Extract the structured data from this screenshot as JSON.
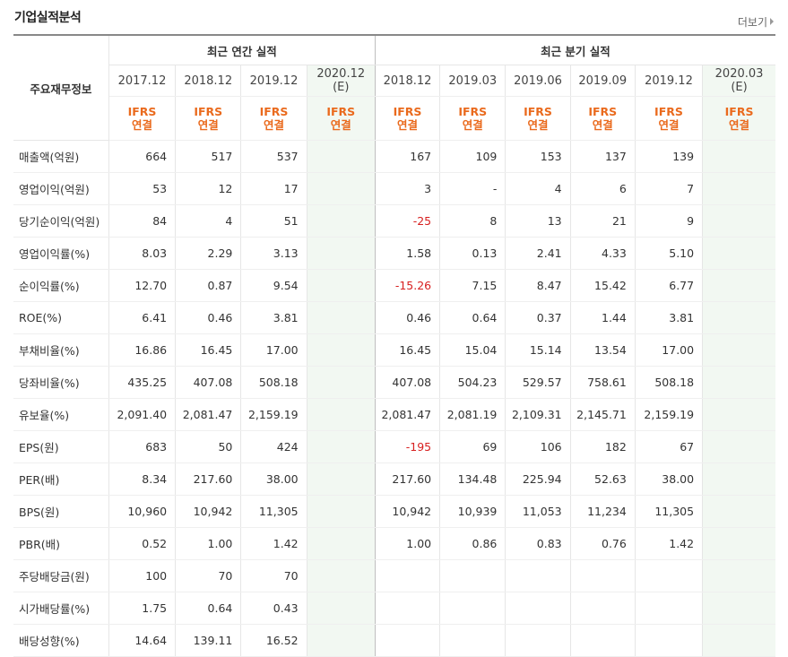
{
  "title": "기업실적분석",
  "more_label": "더보기",
  "header": {
    "corner": "주요재무정보",
    "annual_label": "최근 연간 실적",
    "quarter_label": "최근 분기 실적",
    "columns": [
      {
        "date": "2017.12",
        "est": "",
        "std1": "IFRS",
        "std2": "연결"
      },
      {
        "date": "2018.12",
        "est": "",
        "std1": "IFRS",
        "std2": "연결"
      },
      {
        "date": "2019.12",
        "est": "",
        "std1": "IFRS",
        "std2": "연결"
      },
      {
        "date": "2020.12",
        "est": "(E)",
        "std1": "IFRS",
        "std2": "연결"
      },
      {
        "date": "2018.12",
        "est": "",
        "std1": "IFRS",
        "std2": "연결"
      },
      {
        "date": "2019.03",
        "est": "",
        "std1": "IFRS",
        "std2": "연결"
      },
      {
        "date": "2019.06",
        "est": "",
        "std1": "IFRS",
        "std2": "연결"
      },
      {
        "date": "2019.09",
        "est": "",
        "std1": "IFRS",
        "std2": "연결"
      },
      {
        "date": "2019.12",
        "est": "",
        "std1": "IFRS",
        "std2": "연결"
      },
      {
        "date": "2020.03",
        "est": "(E)",
        "std1": "IFRS",
        "std2": "연결"
      }
    ]
  },
  "rows": [
    {
      "label": "매출액(억원)",
      "values": [
        "664",
        "517",
        "537",
        "",
        "167",
        "109",
        "153",
        "137",
        "139",
        ""
      ]
    },
    {
      "label": "영업이익(억원)",
      "values": [
        "53",
        "12",
        "17",
        "",
        "3",
        "-",
        "4",
        "6",
        "7",
        ""
      ]
    },
    {
      "label": "당기순이익(억원)",
      "values": [
        "84",
        "4",
        "51",
        "",
        "-25",
        "8",
        "13",
        "21",
        "9",
        ""
      ]
    },
    {
      "label": "영업이익률(%)",
      "values": [
        "8.03",
        "2.29",
        "3.13",
        "",
        "1.58",
        "0.13",
        "2.41",
        "4.33",
        "5.10",
        ""
      ]
    },
    {
      "label": "순이익률(%)",
      "values": [
        "12.70",
        "0.87",
        "9.54",
        "",
        "-15.26",
        "7.15",
        "8.47",
        "15.42",
        "6.77",
        ""
      ]
    },
    {
      "label": "ROE(%)",
      "values": [
        "6.41",
        "0.46",
        "3.81",
        "",
        "0.46",
        "0.64",
        "0.37",
        "1.44",
        "3.81",
        ""
      ]
    },
    {
      "label": "부채비율(%)",
      "values": [
        "16.86",
        "16.45",
        "17.00",
        "",
        "16.45",
        "15.04",
        "15.14",
        "13.54",
        "17.00",
        ""
      ]
    },
    {
      "label": "당좌비율(%)",
      "values": [
        "435.25",
        "407.08",
        "508.18",
        "",
        "407.08",
        "504.23",
        "529.57",
        "758.61",
        "508.18",
        ""
      ]
    },
    {
      "label": "유보율(%)",
      "values": [
        "2,091.40",
        "2,081.47",
        "2,159.19",
        "",
        "2,081.47",
        "2,081.19",
        "2,109.31",
        "2,145.71",
        "2,159.19",
        ""
      ]
    },
    {
      "label": "EPS(원)",
      "values": [
        "683",
        "50",
        "424",
        "",
        "-195",
        "69",
        "106",
        "182",
        "67",
        ""
      ]
    },
    {
      "label": "PER(배)",
      "values": [
        "8.34",
        "217.60",
        "38.00",
        "",
        "217.60",
        "134.48",
        "225.94",
        "52.63",
        "38.00",
        ""
      ]
    },
    {
      "label": "BPS(원)",
      "values": [
        "10,960",
        "10,942",
        "11,305",
        "",
        "10,942",
        "10,939",
        "11,053",
        "11,234",
        "11,305",
        ""
      ]
    },
    {
      "label": "PBR(배)",
      "values": [
        "0.52",
        "1.00",
        "1.42",
        "",
        "1.00",
        "0.86",
        "0.83",
        "0.76",
        "1.42",
        ""
      ]
    },
    {
      "label": "주당배당금(원)",
      "values": [
        "100",
        "70",
        "70",
        "",
        "",
        "",
        "",
        "",
        "",
        ""
      ]
    },
    {
      "label": "시가배당률(%)",
      "values": [
        "1.75",
        "0.64",
        "0.43",
        "",
        "",
        "",
        "",
        "",
        "",
        ""
      ]
    },
    {
      "label": "배당성향(%)",
      "values": [
        "14.64",
        "139.11",
        "16.52",
        "",
        "",
        "",
        "",
        "",
        "",
        ""
      ]
    }
  ],
  "colors": {
    "ifrs": "#ea6a1d",
    "negative": "#d71f1f",
    "estimate_bg": "#f2f8f2"
  }
}
